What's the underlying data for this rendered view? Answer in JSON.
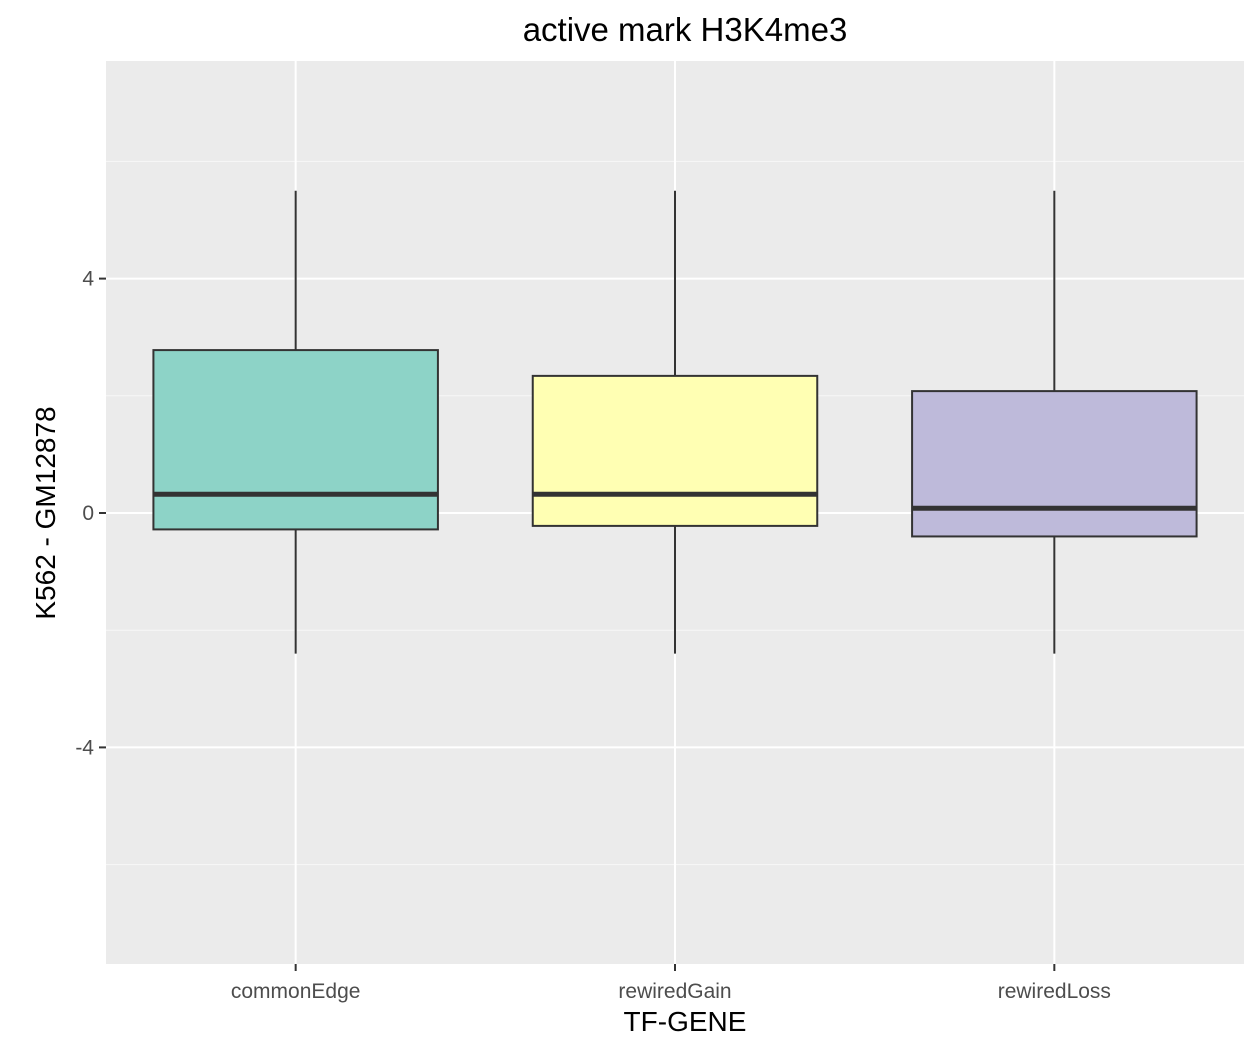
{
  "chart_data": {
    "type": "box",
    "title": "active mark H3K4me3",
    "xlabel": "TF-GENE",
    "ylabel": "K562 - GM12878",
    "ylim": [
      -7.8,
      7.6
    ],
    "y_ticks": [
      4,
      0,
      -4
    ],
    "y_tick_labels": [
      "4",
      "0",
      "-4"
    ],
    "grid": true,
    "panel_background": "#EBEBEB",
    "grid_color": "#FFFFFF",
    "box_stroke_color": "#333333",
    "categories": [
      "commonEdge",
      "rewiredGain",
      "rewiredLoss"
    ],
    "boxes": [
      {
        "category": "commonEdge",
        "color": "#8DD3C7",
        "min": -2.4,
        "q1": -0.28,
        "median": 0.32,
        "q3": 2.78,
        "max": 5.5
      },
      {
        "category": "rewiredGain",
        "color": "#FFFFB3",
        "min": -2.4,
        "q1": -0.22,
        "median": 0.32,
        "q3": 2.34,
        "max": 5.5
      },
      {
        "category": "rewiredLoss",
        "color": "#BEBADA",
        "min": -2.4,
        "q1": -0.4,
        "median": 0.08,
        "q3": 2.08,
        "max": 5.5
      }
    ]
  }
}
